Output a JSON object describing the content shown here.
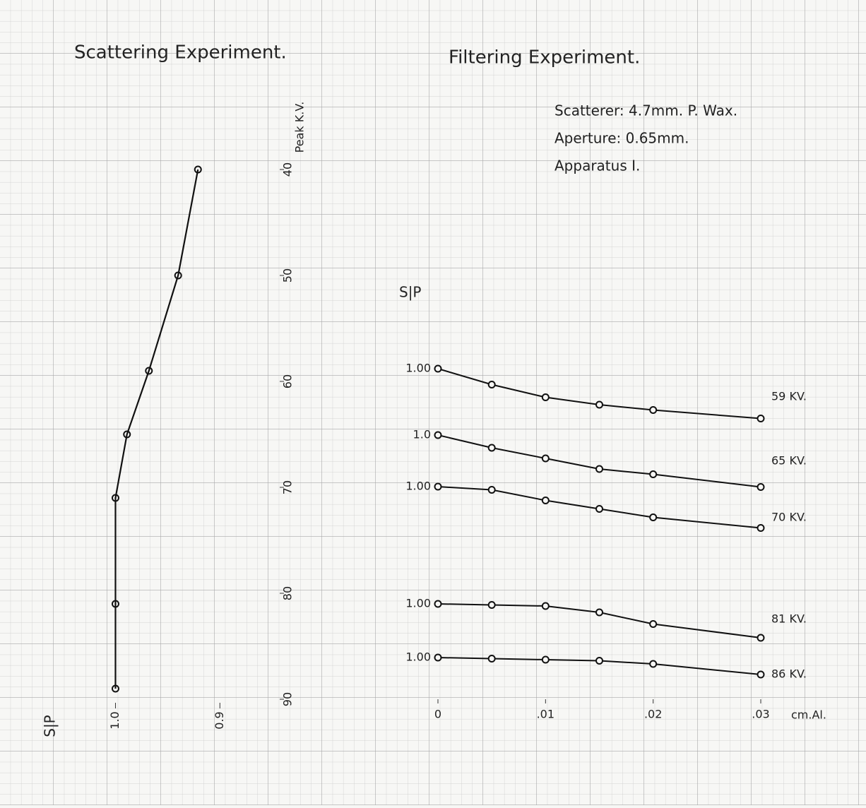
{
  "chart_data": [
    {
      "type": "line",
      "title": "Scattering Experiment.",
      "x_label": "S|P",
      "y_label": "Peak K.V.",
      "x": [
        0.921,
        0.94,
        0.968,
        0.989,
        1.0,
        1.0,
        1.0
      ],
      "values": [
        40,
        50,
        59,
        65,
        71,
        81,
        89
      ],
      "color": "#111111",
      "xlim": [
        1.07,
        0.84
      ],
      "xticks": [
        {
          "value": 1,
          "label": "1.0"
        },
        0.9
      ],
      "ylim": [
        36,
        92
      ],
      "yticks": [
        40,
        50,
        60,
        70,
        80,
        90
      ]
    },
    {
      "type": "line",
      "title": "Filtering Experiment.",
      "y_label": "S|P",
      "x_label": "cm.Al.",
      "annotations": [
        "Scatterer: 4.7mm. P. Wax.",
        "Aperture: 0.65mm.",
        "Apparatus I."
      ],
      "x": [
        0,
        0.005,
        0.01,
        0.015,
        0.02,
        0.03
      ],
      "xlim": [
        0,
        0.03
      ],
      "xticks": [
        0,
        {
          "value": 0.01,
          "label": ".01"
        },
        {
          "value": 0.02,
          "label": ".02"
        },
        {
          "value": 0.03,
          "label": ".03"
        }
      ],
      "series": [
        {
          "name": "59 KV.",
          "start_label": "1.00",
          "color": "#111111",
          "values": [
            1.0,
            0.985,
            0.973,
            0.966,
            0.961,
            0.953
          ]
        },
        {
          "name": "65 KV.",
          "start_label": "1.0",
          "color": "#111111",
          "values": [
            1.0,
            0.988,
            0.978,
            0.968,
            0.963,
            0.951
          ]
        },
        {
          "name": "70 KV.",
          "start_label": "1.00",
          "color": "#111111",
          "values": [
            1.0,
            0.997,
            0.987,
            0.979,
            0.971,
            0.961
          ]
        },
        {
          "name": "81 KV.",
          "start_label": "1.00",
          "color": "#111111",
          "values": [
            1.0,
            0.999,
            0.998,
            0.992,
            0.981,
            0.968
          ]
        },
        {
          "name": "86 KV.",
          "start_label": "1.00",
          "color": "#111111",
          "values": [
            1.0,
            0.999,
            0.998,
            0.997,
            0.994,
            0.984
          ]
        }
      ]
    }
  ]
}
